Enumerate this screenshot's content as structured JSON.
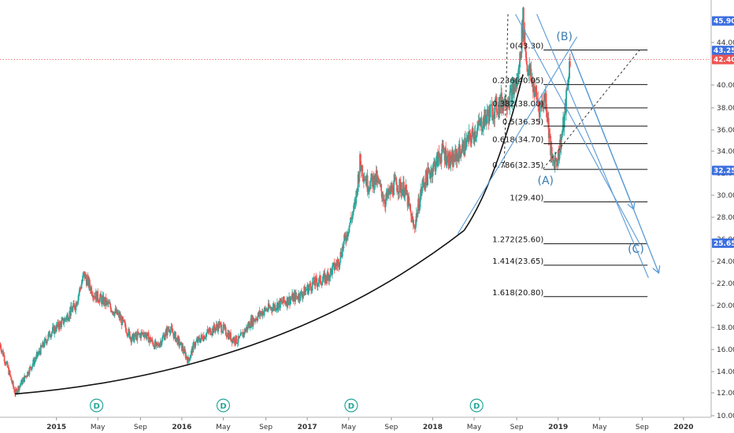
{
  "chart_data": {
    "type": "candlestick",
    "colors": {
      "up": "#26a69a",
      "down": "#ef5350",
      "curve": "#111111",
      "fib": "#111111",
      "trend": "#5b9bd5",
      "current_price_line": "#ef5350",
      "tag_blue": "#3d6fe0",
      "tag_red": "#ef5350",
      "event": "#26a69a",
      "axis_text": "#333333"
    },
    "y_axis": {
      "min": 10.0,
      "max": 46.5,
      "ticks": [
        "10.00",
        "12.00",
        "14.00",
        "16.00",
        "18.00",
        "20.00",
        "22.00",
        "24.00",
        "26.00",
        "28.00",
        "30.00",
        "32.00",
        "34.00",
        "36.00",
        "38.00",
        "40.00",
        "44.00"
      ]
    },
    "x_axis": {
      "start_year": 2014.55,
      "end_year": 2020.22,
      "ticks": [
        {
          "label": "2015",
          "t": 2015.0
        },
        {
          "label": "May",
          "t": 2015.33
        },
        {
          "label": "Sep",
          "t": 2015.67
        },
        {
          "label": "2016",
          "t": 2016.0
        },
        {
          "label": "May",
          "t": 2016.33
        },
        {
          "label": "Sep",
          "t": 2016.67
        },
        {
          "label": "2017",
          "t": 2017.0
        },
        {
          "label": "May",
          "t": 2017.33
        },
        {
          "label": "Sep",
          "t": 2017.67
        },
        {
          "label": "2018",
          "t": 2018.0
        },
        {
          "label": "May",
          "t": 2018.33
        },
        {
          "label": "Sep",
          "t": 2018.67
        },
        {
          "label": "2019",
          "t": 2019.0
        },
        {
          "label": "May",
          "t": 2019.33
        },
        {
          "label": "Sep",
          "t": 2019.67
        },
        {
          "label": "2020",
          "t": 2020.0
        }
      ]
    },
    "price_path": [
      [
        2014.55,
        16.5
      ],
      [
        2014.62,
        14.0
      ],
      [
        2014.67,
        12.0
      ],
      [
        2014.75,
        13.5
      ],
      [
        2014.85,
        15.5
      ],
      [
        2014.95,
        17.5
      ],
      [
        2015.05,
        18.5
      ],
      [
        2015.15,
        20.0
      ],
      [
        2015.22,
        22.8
      ],
      [
        2015.3,
        21.0
      ],
      [
        2015.4,
        20.2
      ],
      [
        2015.5,
        19.0
      ],
      [
        2015.6,
        17.0
      ],
      [
        2015.7,
        17.5
      ],
      [
        2015.8,
        16.2
      ],
      [
        2015.9,
        18.0
      ],
      [
        2016.0,
        16.2
      ],
      [
        2016.05,
        15.0
      ],
      [
        2016.1,
        16.5
      ],
      [
        2016.2,
        17.5
      ],
      [
        2016.3,
        18.2
      ],
      [
        2016.4,
        17.0
      ],
      [
        2016.45,
        16.8
      ],
      [
        2016.55,
        18.5
      ],
      [
        2016.65,
        19.5
      ],
      [
        2016.75,
        20.0
      ],
      [
        2016.85,
        20.5
      ],
      [
        2016.95,
        21.0
      ],
      [
        2017.05,
        22.0
      ],
      [
        2017.15,
        22.5
      ],
      [
        2017.25,
        24.0
      ],
      [
        2017.3,
        26.0
      ],
      [
        2017.38,
        29.0
      ],
      [
        2017.42,
        33.0
      ],
      [
        2017.48,
        31.0
      ],
      [
        2017.55,
        31.5
      ],
      [
        2017.62,
        29.5
      ],
      [
        2017.7,
        31.0
      ],
      [
        2017.78,
        30.5
      ],
      [
        2017.85,
        27.0
      ],
      [
        2017.92,
        31.0
      ],
      [
        2018.0,
        32.5
      ],
      [
        2018.08,
        34.0
      ],
      [
        2018.15,
        33.0
      ],
      [
        2018.25,
        34.5
      ],
      [
        2018.35,
        36.0
      ],
      [
        2018.45,
        37.5
      ],
      [
        2018.55,
        38.5
      ],
      [
        2018.62,
        39.0
      ],
      [
        2018.68,
        40.5
      ],
      [
        2018.72,
        46.0
      ],
      [
        2018.75,
        42.0
      ],
      [
        2018.8,
        40.0
      ],
      [
        2018.85,
        38.0
      ],
      [
        2018.9,
        39.0
      ],
      [
        2018.95,
        33.0
      ],
      [
        2019.0,
        33.5
      ],
      [
        2019.05,
        37.0
      ],
      [
        2019.1,
        43.0
      ]
    ],
    "curve": {
      "start": [
        2014.67,
        11.9
      ],
      "end": [
        2018.25,
        26.8
      ],
      "control": [
        2016.8,
        14.0
      ]
    },
    "trendlines": [
      {
        "from": [
          2018.2,
          26.5
        ],
        "to": [
          2019.15,
          44.5
        ]
      },
      {
        "from": [
          2018.66,
          46.5
        ],
        "to": [
          2019.65,
          25.6
        ]
      },
      {
        "from": [
          2018.83,
          46.5
        ],
        "to": [
          2019.72,
          22.5
        ]
      }
    ],
    "arrows": [
      {
        "from": [
          2019.1,
          43.3
        ],
        "to": [
          2019.6,
          28.8
        ]
      },
      {
        "from": [
          2019.1,
          43.3
        ],
        "to": [
          2019.8,
          23.0
        ]
      }
    ],
    "dashed_lines": [
      {
        "from": [
          2018.6,
          46.5
        ],
        "to": [
          2018.57,
          32.4
        ]
      },
      {
        "from": [
          2018.88,
          32.4
        ],
        "to": [
          2019.65,
          43.3
        ]
      }
    ],
    "fib_levels": [
      {
        "label": "0(43.30)",
        "value": 43.3
      },
      {
        "label": "0.236(40.05)",
        "value": 40.05
      },
      {
        "label": "0.382(38.00)",
        "value": 38.0
      },
      {
        "label": "0.5(36.35)",
        "value": 36.35
      },
      {
        "label": "0.618(34.70)",
        "value": 34.7
      },
      {
        "label": "0.786(32.35)",
        "value": 32.35
      },
      {
        "label": "1(29.40)",
        "value": 29.4
      },
      {
        "label": "1.272(25.60)",
        "value": 25.6
      },
      {
        "label": "1.414(23.65)",
        "value": 23.65
      },
      {
        "label": "1.618(20.80)",
        "value": 20.8
      }
    ],
    "fib_x_range": [
      2018.57,
      2019.65
    ],
    "wave_labels": [
      {
        "text": "(B)",
        "t": 2199.0,
        "v": 0
      },
      {
        "text": "(A)",
        "t": 0,
        "v": 0
      },
      {
        "text": "(C)",
        "t": 0,
        "v": 0
      }
    ],
    "wave_points": [
      {
        "text": "(B)",
        "t": 2019.05,
        "v": 44.2
      },
      {
        "text": "(A)",
        "t": 2018.9,
        "v": 31.0
      },
      {
        "text": "(C)",
        "t": 2019.62,
        "v": 24.8
      }
    ],
    "current_price": 42.4,
    "price_tags": [
      {
        "label": "45.90",
        "value": 45.9,
        "color": "tag_blue"
      },
      {
        "label": "43.25",
        "value": 43.25,
        "color": "tag_blue"
      },
      {
        "label": "42.40",
        "value": 42.4,
        "color": "tag_red"
      },
      {
        "label": "32.25",
        "value": 32.25,
        "color": "tag_blue"
      },
      {
        "label": "25.65",
        "value": 25.65,
        "color": "tag_blue"
      }
    ],
    "event_markers": [
      {
        "label": "D",
        "t": 2015.32
      },
      {
        "label": "D",
        "t": 2016.33
      },
      {
        "label": "D",
        "t": 2017.35
      },
      {
        "label": "D",
        "t": 2018.35
      }
    ]
  }
}
